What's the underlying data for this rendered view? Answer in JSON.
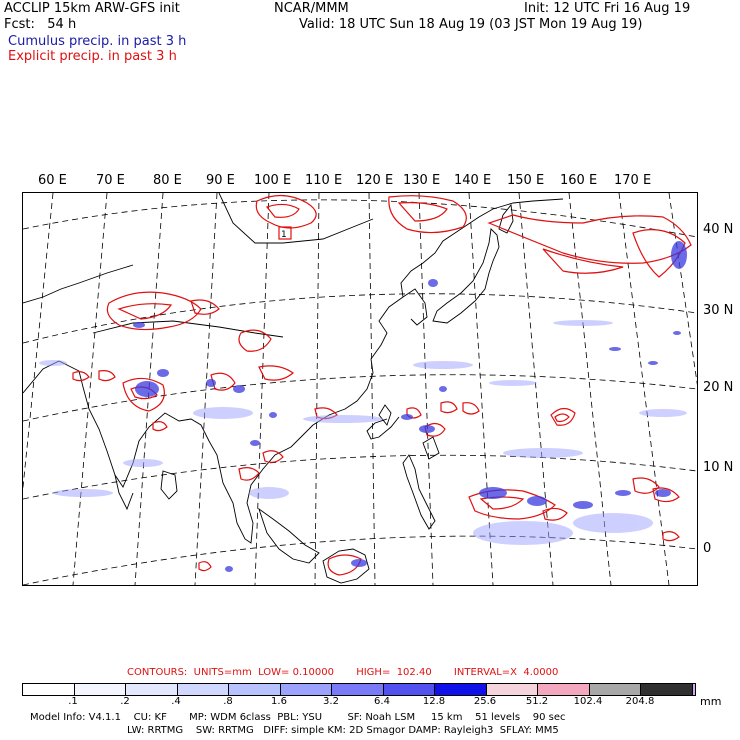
{
  "header": {
    "line1_left": "ACCLIP 15km ARW-GFS init",
    "line1_center": "NCAR/MMM",
    "line1_right": "Init: 12 UTC Fri 16 Aug 19",
    "line2_left": "Fcst:   54 h",
    "line2_right": "Valid: 18 UTC Sun 18 Aug 19 (03 JST Mon 19 Aug 19)",
    "legend_cumulus": "Cumulus precip. in past 3 h",
    "legend_explicit": "Explicit precip. in past 3 h"
  },
  "map": {
    "lon_labels": [
      "60 E",
      "70 E",
      "80 E",
      "90 E",
      "100 E",
      "110 E",
      "120 E",
      "130 E",
      "140 E",
      "150 E",
      "160 E",
      "170 E"
    ],
    "lat_labels": [
      "40 N",
      "30 N",
      "20 N",
      "10 N",
      "0"
    ],
    "box_label": "1",
    "colors": {
      "cumulus": "#3a3ae0",
      "explicit": "#e01010",
      "coast": "#000000",
      "grid": "#000000"
    }
  },
  "contours": {
    "text": "CONTOURS:  UNITS=mm  LOW= 0.10000       HIGH=  102.40       INTERVAL=X  4.0000"
  },
  "colorbar": {
    "colors": [
      "#ffffff",
      "#f4f6ff",
      "#e4e8ff",
      "#d0d8ff",
      "#b8c2ff",
      "#9da2ff",
      "#7a7af8",
      "#5252f0",
      "#1010e8",
      "#f6d4dc",
      "#f4a8c0",
      "#ee88c0",
      "#a8a8a8",
      "#303030",
      "#d8a8f8"
    ],
    "labels": [
      ".1",
      ".2",
      ".4",
      ".8",
      "1.6",
      "3.2",
      "6.4",
      "12.8",
      "25.6",
      "51.2",
      "102.4",
      "204.8"
    ],
    "unit": "mm"
  },
  "model_info": {
    "line1": "Model Info: V4.1.1    CU: KF       MP: WDM 6class  PBL: YSU        SF: Noah LSM     15 km    51 levels    90 sec",
    "line2": "LW: RRTMG    SW: RRTMG   DIFF: simple KM: 2D Smagor DAMP: Rayleigh3  SFLAY: MM5"
  }
}
